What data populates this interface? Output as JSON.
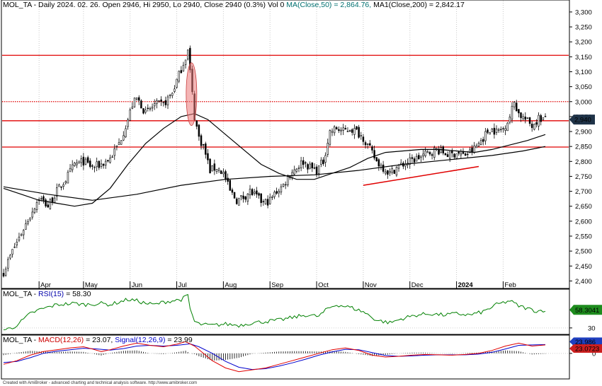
{
  "chart_data": [
    {
      "type": "candlestick",
      "header": {
        "part1": "MOL_TA - Daily 2024. 02. 26. Open 2946, Hi 2950, Lo 2940, Close 2940 (0.3%) Vol 0 ",
        "part2": "MA(Close,50) = 2,864.76, ",
        "part3": "MA1(Close,200) = 2,842.17"
      },
      "ylim": [
        2375,
        3340
      ],
      "y_ticks": [
        2400,
        2450,
        2500,
        2550,
        2600,
        2650,
        2700,
        2750,
        2800,
        2850,
        2900,
        2950,
        3000,
        3050,
        3100,
        3150,
        3200,
        3250,
        3300
      ],
      "y_tick_labels": [
        "2,400",
        "2,450",
        "2,500",
        "2,550",
        "2,600",
        "2,650",
        "2,700",
        "2,750",
        "2,800",
        "2,850",
        "2,900",
        "2,950",
        "3,000",
        "3,050",
        "3,100",
        "3,150",
        "3,200",
        "3,250",
        "3,300"
      ],
      "x_labels": [
        {
          "label": "Apr",
          "i": 16
        },
        {
          "label": "May",
          "i": 36
        },
        {
          "label": "Jun",
          "i": 57
        },
        {
          "label": "Jul",
          "i": 78
        },
        {
          "label": "Aug",
          "i": 99
        },
        {
          "label": "Sep",
          "i": 120
        },
        {
          "label": "Oct",
          "i": 141
        },
        {
          "label": "Nov",
          "i": 162
        },
        {
          "label": "Dec",
          "i": 183
        },
        {
          "label": "2024",
          "i": 204
        },
        {
          "label": "Feb",
          "i": 225
        }
      ],
      "n_bars": 245,
      "close_path": [
        [
          0,
          2430
        ],
        [
          4,
          2500
        ],
        [
          8,
          2560
        ],
        [
          12,
          2620
        ],
        [
          16,
          2680
        ],
        [
          20,
          2650
        ],
        [
          24,
          2700
        ],
        [
          28,
          2740
        ],
        [
          32,
          2790
        ],
        [
          36,
          2800
        ],
        [
          40,
          2780
        ],
        [
          44,
          2790
        ],
        [
          48,
          2810
        ],
        [
          52,
          2860
        ],
        [
          56,
          2940
        ],
        [
          58,
          2990
        ],
        [
          60,
          3010
        ],
        [
          62,
          2990
        ],
        [
          64,
          2960
        ],
        [
          68,
          2990
        ],
        [
          72,
          2990
        ],
        [
          76,
          3030
        ],
        [
          80,
          3110
        ],
        [
          83,
          3170
        ],
        [
          84,
          3100
        ],
        [
          86,
          2950
        ],
        [
          88,
          2880
        ],
        [
          90,
          2850
        ],
        [
          93,
          2770
        ],
        [
          96,
          2780
        ],
        [
          99,
          2760
        ],
        [
          102,
          2700
        ],
        [
          105,
          2670
        ],
        [
          108,
          2680
        ],
        [
          111,
          2700
        ],
        [
          114,
          2680
        ],
        [
          117,
          2660
        ],
        [
          120,
          2670
        ],
        [
          123,
          2700
        ],
        [
          126,
          2720
        ],
        [
          129,
          2760
        ],
        [
          132,
          2780
        ],
        [
          135,
          2800
        ],
        [
          138,
          2780
        ],
        [
          141,
          2770
        ],
        [
          144,
          2800
        ],
        [
          147,
          2900
        ],
        [
          150,
          2910
        ],
        [
          153,
          2900
        ],
        [
          156,
          2910
        ],
        [
          159,
          2900
        ],
        [
          162,
          2880
        ],
        [
          165,
          2840
        ],
        [
          168,
          2800
        ],
        [
          171,
          2780
        ],
        [
          174,
          2760
        ],
        [
          177,
          2780
        ],
        [
          180,
          2790
        ],
        [
          183,
          2800
        ],
        [
          186,
          2810
        ],
        [
          189,
          2820
        ],
        [
          192,
          2830
        ],
        [
          195,
          2840
        ],
        [
          198,
          2830
        ],
        [
          201,
          2820
        ],
        [
          204,
          2830
        ],
        [
          207,
          2820
        ],
        [
          210,
          2830
        ],
        [
          213,
          2850
        ],
        [
          216,
          2880
        ],
        [
          219,
          2910
        ],
        [
          222,
          2900
        ],
        [
          225,
          2910
        ],
        [
          228,
          2950
        ],
        [
          230,
          3000
        ],
        [
          232,
          2960
        ],
        [
          235,
          2940
        ],
        [
          238,
          2920
        ],
        [
          241,
          2945
        ],
        [
          244,
          2940
        ]
      ],
      "last_price_label": "2,940",
      "ma50_path": [
        [
          0,
          2710
        ],
        [
          8,
          2690
        ],
        [
          16,
          2670
        ],
        [
          24,
          2660
        ],
        [
          32,
          2650
        ],
        [
          40,
          2660
        ],
        [
          48,
          2710
        ],
        [
          56,
          2790
        ],
        [
          64,
          2860
        ],
        [
          72,
          2910
        ],
        [
          80,
          2950
        ],
        [
          86,
          2960
        ],
        [
          92,
          2940
        ],
        [
          100,
          2890
        ],
        [
          108,
          2840
        ],
        [
          116,
          2790
        ],
        [
          124,
          2760
        ],
        [
          132,
          2740
        ],
        [
          140,
          2740
        ],
        [
          148,
          2760
        ],
        [
          156,
          2780
        ],
        [
          164,
          2810
        ],
        [
          172,
          2830
        ],
        [
          180,
          2835
        ],
        [
          188,
          2840
        ],
        [
          196,
          2840
        ],
        [
          204,
          2835
        ],
        [
          212,
          2830
        ],
        [
          220,
          2840
        ],
        [
          228,
          2855
        ],
        [
          236,
          2870
        ],
        [
          244,
          2890
        ]
      ],
      "ma200_path": [
        [
          0,
          2715
        ],
        [
          20,
          2690
        ],
        [
          40,
          2670
        ],
        [
          60,
          2690
        ],
        [
          80,
          2720
        ],
        [
          100,
          2740
        ],
        [
          120,
          2750
        ],
        [
          140,
          2755
        ],
        [
          160,
          2770
        ],
        [
          180,
          2790
        ],
        [
          200,
          2805
        ],
        [
          220,
          2820
        ],
        [
          234,
          2835
        ],
        [
          244,
          2850
        ]
      ],
      "horizontal_lines": [
        {
          "value": 3155,
          "style": "solid"
        },
        {
          "value": 3000,
          "style": "dotted"
        },
        {
          "value": 2936,
          "style": "solid"
        },
        {
          "value": 2848,
          "style": "solid"
        }
      ],
      "trendline": [
        [
          162,
          2720
        ],
        [
          214,
          2783
        ]
      ],
      "ellipse": {
        "i": 84,
        "value_top": 3130,
        "value_bottom": 2920
      }
    },
    {
      "type": "line",
      "header": {
        "part1": "MOL_TA - ",
        "part2": "RSI(15)",
        "part3": " = 58.30"
      },
      "ylim": [
        20,
        90
      ],
      "y_ticks": [
        30
      ],
      "y_tick_labels": [
        "30"
      ],
      "last_value_label": "58.3041",
      "path": [
        [
          0,
          27
        ],
        [
          4,
          30
        ],
        [
          8,
          40
        ],
        [
          12,
          52
        ],
        [
          16,
          58
        ],
        [
          20,
          62
        ],
        [
          24,
          66
        ],
        [
          28,
          67
        ],
        [
          32,
          68
        ],
        [
          36,
          66
        ],
        [
          40,
          67
        ],
        [
          44,
          68
        ],
        [
          48,
          66
        ],
        [
          52,
          70
        ],
        [
          56,
          74
        ],
        [
          60,
          72
        ],
        [
          64,
          68
        ],
        [
          68,
          66
        ],
        [
          72,
          70
        ],
        [
          76,
          72
        ],
        [
          80,
          74
        ],
        [
          83,
          80
        ],
        [
          84,
          60
        ],
        [
          86,
          40
        ],
        [
          88,
          36
        ],
        [
          90,
          35
        ],
        [
          94,
          34
        ],
        [
          100,
          36
        ],
        [
          106,
          34
        ],
        [
          112,
          38
        ],
        [
          118,
          40
        ],
        [
          124,
          42
        ],
        [
          130,
          46
        ],
        [
          136,
          50
        ],
        [
          142,
          48
        ],
        [
          146,
          60
        ],
        [
          150,
          66
        ],
        [
          156,
          62
        ],
        [
          162,
          55
        ],
        [
          168,
          42
        ],
        [
          174,
          38
        ],
        [
          180,
          45
        ],
        [
          186,
          50
        ],
        [
          192,
          52
        ],
        [
          198,
          50
        ],
        [
          204,
          52
        ],
        [
          210,
          50
        ],
        [
          216,
          55
        ],
        [
          222,
          66
        ],
        [
          228,
          72
        ],
        [
          232,
          64
        ],
        [
          236,
          60
        ],
        [
          240,
          56
        ],
        [
          244,
          58
        ]
      ]
    },
    {
      "type": "line",
      "header": {
        "part1": "MOL_TA - ",
        "part2": "MACD(12,26)",
        "part3": " = 23.07, ",
        "part4": "Signal(12,26,9)",
        "part5": " = 23.99"
      },
      "ylim": [
        -70,
        50
      ],
      "y_ticks": [
        0
      ],
      "y_tick_labels": [
        "0"
      ],
      "signal_label": "23.986",
      "macd_label": "23.0723",
      "macd_path": [
        [
          0,
          -30
        ],
        [
          6,
          -20
        ],
        [
          12,
          -5
        ],
        [
          18,
          5
        ],
        [
          24,
          10
        ],
        [
          30,
          15
        ],
        [
          36,
          18
        ],
        [
          40,
          12
        ],
        [
          44,
          5
        ],
        [
          48,
          10
        ],
        [
          54,
          20
        ],
        [
          60,
          28
        ],
        [
          66,
          22
        ],
        [
          72,
          18
        ],
        [
          78,
          25
        ],
        [
          82,
          32
        ],
        [
          86,
          20
        ],
        [
          90,
          0
        ],
        [
          94,
          -20
        ],
        [
          100,
          -40
        ],
        [
          106,
          -50
        ],
        [
          112,
          -45
        ],
        [
          118,
          -40
        ],
        [
          124,
          -30
        ],
        [
          130,
          -20
        ],
        [
          136,
          -10
        ],
        [
          142,
          0
        ],
        [
          148,
          10
        ],
        [
          154,
          15
        ],
        [
          160,
          8
        ],
        [
          166,
          -5
        ],
        [
          172,
          -10
        ],
        [
          178,
          -8
        ],
        [
          184,
          -5
        ],
        [
          190,
          -3
        ],
        [
          196,
          -4
        ],
        [
          202,
          -5
        ],
        [
          208,
          -3
        ],
        [
          214,
          0
        ],
        [
          220,
          8
        ],
        [
          226,
          20
        ],
        [
          232,
          28
        ],
        [
          238,
          20
        ],
        [
          244,
          23
        ]
      ],
      "signal_path": [
        [
          0,
          -25
        ],
        [
          6,
          -22
        ],
        [
          12,
          -12
        ],
        [
          18,
          0
        ],
        [
          24,
          6
        ],
        [
          30,
          10
        ],
        [
          36,
          14
        ],
        [
          42,
          12
        ],
        [
          48,
          9
        ],
        [
          54,
          13
        ],
        [
          60,
          20
        ],
        [
          66,
          22
        ],
        [
          72,
          20
        ],
        [
          78,
          22
        ],
        [
          84,
          26
        ],
        [
          88,
          18
        ],
        [
          94,
          0
        ],
        [
          100,
          -22
        ],
        [
          106,
          -38
        ],
        [
          112,
          -44
        ],
        [
          118,
          -42
        ],
        [
          124,
          -35
        ],
        [
          130,
          -26
        ],
        [
          136,
          -16
        ],
        [
          142,
          -5
        ],
        [
          148,
          4
        ],
        [
          154,
          11
        ],
        [
          160,
          10
        ],
        [
          166,
          2
        ],
        [
          172,
          -6
        ],
        [
          178,
          -8
        ],
        [
          184,
          -7
        ],
        [
          190,
          -5
        ],
        [
          196,
          -4
        ],
        [
          202,
          -4
        ],
        [
          208,
          -4
        ],
        [
          214,
          -2
        ],
        [
          220,
          3
        ],
        [
          226,
          12
        ],
        [
          232,
          22
        ],
        [
          238,
          23
        ],
        [
          244,
          24
        ]
      ]
    }
  ],
  "footer": "Created with AmiBroker - advanced charting and technical analysis software. http://www.amibroker.com",
  "colors": {
    "up": "#ffffff",
    "down": "#000000",
    "ma": "#000000",
    "level_line": "#e00000",
    "rsi": "#008000",
    "macd": "#e00000",
    "signal": "#0000cc",
    "hist": "#000000",
    "teal_label": "#007070",
    "blue_label": "#0000aa"
  }
}
